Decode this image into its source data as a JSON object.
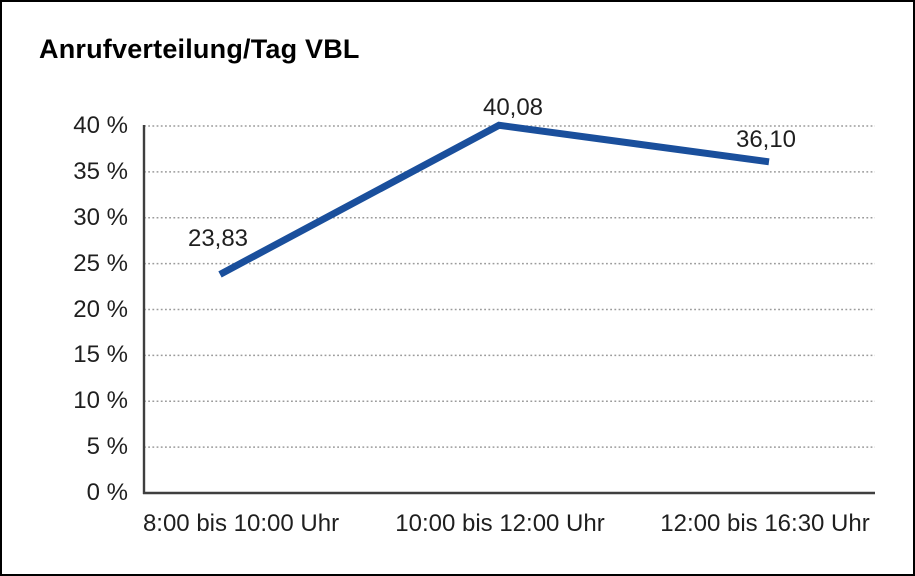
{
  "header": {
    "title": "Anrufverteilung/Tag VBL"
  },
  "chart_data": {
    "type": "line",
    "title": "Anrufverteilung/Tag VBL",
    "categories": [
      "8:00 bis 10:00 Uhr",
      "10:00 bis 12:00 Uhr",
      "12:00 bis 16:30 Uhr"
    ],
    "series": [
      {
        "name": "Anrufverteilung",
        "values": [
          23.83,
          40.08,
          36.1
        ],
        "data_labels": [
          "23,83",
          "40,08",
          "36,10"
        ]
      }
    ],
    "xlabel": "",
    "ylabel": "",
    "ylim": [
      0,
      40
    ],
    "y_ticks": [
      {
        "value": 0,
        "label": "0 %"
      },
      {
        "value": 5,
        "label": "5 %"
      },
      {
        "value": 10,
        "label": "10 %"
      },
      {
        "value": 15,
        "label": "15 %"
      },
      {
        "value": 20,
        "label": "20 %"
      },
      {
        "value": 25,
        "label": "25 %"
      },
      {
        "value": 30,
        "label": "30 %"
      },
      {
        "value": 35,
        "label": "35 %"
      },
      {
        "value": 40,
        "label": "40 %"
      }
    ],
    "grid": "horizontal dotted lines at each 5 % tick, no vertical gridlines",
    "legend_position": "none",
    "colors": {
      "line": "#1a4f9c",
      "grid": "#9b9b9b",
      "axis": "#3f3f3f",
      "text": "#1f1f1f",
      "background": "#ffffff",
      "frame_border": "#000000"
    }
  }
}
